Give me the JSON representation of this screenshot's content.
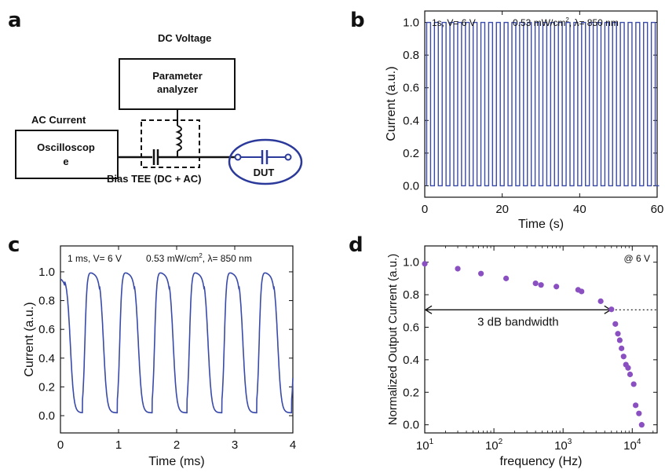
{
  "panels": {
    "a": "a",
    "b": "b",
    "c": "c",
    "d": "d"
  },
  "diagram": {
    "dc_voltage": "DC Voltage",
    "analyzer_line1": "Parameter",
    "analyzer_line2": "analyzer",
    "ac_current": "AC Current",
    "osc_line1": "Oscilloscop",
    "osc_line2": "e",
    "bias_tee": "Bias TEE (DC + AC)",
    "dut": "DUT",
    "accent_color": "#2b3a9a"
  },
  "chart_data": [
    {
      "id": "b",
      "type": "line",
      "series_color": "#3a4aa8",
      "annotation_left": "1s, V= 6 V",
      "annotation_right_pre": "0.53 mW/cm",
      "annotation_right_sup": "2",
      "annotation_right_post": ", λ= 850 nm",
      "xlabel": "Time (s)",
      "ylabel": "Current (a.u.)",
      "xlim": [
        0,
        60
      ],
      "ylim": [
        -0.07,
        1.07
      ],
      "xticks": [
        "0",
        "20",
        "40",
        "60"
      ],
      "xtick_values": [
        0,
        20,
        40,
        60
      ],
      "yticks": [
        "0.0",
        "0.2",
        "0.4",
        "0.6",
        "0.8",
        "1.0"
      ],
      "ytick_values": [
        0,
        0.2,
        0.4,
        0.6,
        0.8,
        1.0
      ],
      "waveform": {
        "shape": "square",
        "period": 2,
        "start": 0.5,
        "high": 1.0,
        "low": 0.0,
        "end": 59.5
      }
    },
    {
      "id": "c",
      "type": "line",
      "series_color": "#3a4aa8",
      "annotation_left": "1 ms,  V= 6 V",
      "annotation_right_pre": "0.53 mW/cm",
      "annotation_right_sup": "2",
      "annotation_right_post": ",  λ= 850 nm",
      "xlabel": "Time (ms)",
      "ylabel": "Current (a.u.)",
      "xlim": [
        0,
        4
      ],
      "ylim": [
        -0.12,
        1.18
      ],
      "xticks": [
        "0",
        "1",
        "2",
        "3",
        "4"
      ],
      "xtick_values": [
        0,
        1,
        2,
        3,
        4
      ],
      "yticks": [
        "0.0",
        "0.2",
        "0.4",
        "0.6",
        "0.8",
        "1.0"
      ],
      "ytick_values": [
        0,
        0.2,
        0.4,
        0.6,
        0.8,
        1.0
      ],
      "waveform": {
        "shape": "smoothed-pulse",
        "period": 0.6,
        "first_rise": 0.38,
        "high": 1.0,
        "low": 0.02,
        "start_value": 0.97
      }
    },
    {
      "id": "d",
      "type": "scatter",
      "point_color": "#8a4fc0",
      "annotation": "@ 6 V",
      "bandwidth_label": "3 dB bandwidth",
      "threshold": 0.707,
      "threshold_x": 5000,
      "xlabel": "frequency (Hz)",
      "ylabel": "Normalized Output Current (a.u.)",
      "xscale": "log",
      "xlim_log": [
        1,
        4.36
      ],
      "ylim": [
        -0.05,
        1.1
      ],
      "xticks": [
        {
          "base": "10",
          "exp": "1",
          "log": 1
        },
        {
          "base": "10",
          "exp": "2",
          "log": 2
        },
        {
          "base": "10",
          "exp": "3",
          "log": 3
        },
        {
          "base": "10",
          "exp": "4",
          "log": 4
        }
      ],
      "yticks": [
        "0.0",
        "0.2",
        "0.4",
        "0.6",
        "0.8",
        "1.0"
      ],
      "ytick_values": [
        0,
        0.2,
        0.4,
        0.6,
        0.8,
        1.0
      ],
      "x": [
        10,
        30,
        65,
        150,
        400,
        480,
        800,
        1650,
        1850,
        3500,
        5000,
        5700,
        6200,
        6600,
        7000,
        7500,
        8100,
        8700,
        9300,
        10500,
        11200,
        12500,
        13700
      ],
      "y": [
        0.99,
        0.96,
        0.93,
        0.9,
        0.87,
        0.86,
        0.85,
        0.83,
        0.82,
        0.76,
        0.71,
        0.62,
        0.56,
        0.52,
        0.47,
        0.42,
        0.37,
        0.35,
        0.31,
        0.25,
        0.12,
        0.07,
        0.0
      ]
    }
  ]
}
